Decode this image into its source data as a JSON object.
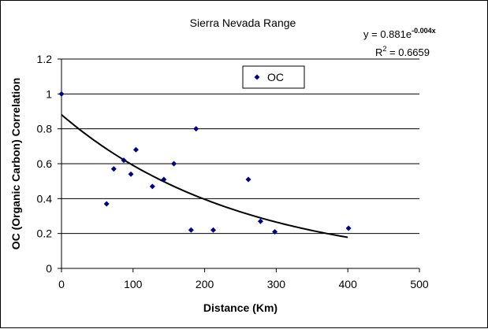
{
  "chart_data": {
    "type": "scatter",
    "title": "Sierra Nevada Range",
    "xlabel": "Distance (Km)",
    "ylabel": "OC (Organic Carbon) Correlation",
    "xlim": [
      0,
      500
    ],
    "ylim": [
      0,
      1.2
    ],
    "x_ticks": [
      0,
      100,
      200,
      300,
      400,
      500
    ],
    "y_ticks": [
      0,
      0.2,
      0.4,
      0.6,
      0.8,
      1,
      1.2
    ],
    "x_tick_labels": [
      "0",
      "100",
      "200",
      "300",
      "400",
      "500"
    ],
    "y_tick_labels": [
      "0",
      "0.2",
      "0.4",
      "0.6",
      "0.8",
      "1",
      "1.2"
    ],
    "grid": "horizontal",
    "legend_position": "top-center",
    "series": [
      {
        "name": "OC",
        "color": "#00008B",
        "marker": "diamond",
        "points": [
          {
            "x": 0,
            "y": 1.0
          },
          {
            "x": 63,
            "y": 0.37
          },
          {
            "x": 73,
            "y": 0.57
          },
          {
            "x": 87,
            "y": 0.62
          },
          {
            "x": 97,
            "y": 0.54
          },
          {
            "x": 104,
            "y": 0.68
          },
          {
            "x": 127,
            "y": 0.47
          },
          {
            "x": 143,
            "y": 0.51
          },
          {
            "x": 157,
            "y": 0.6
          },
          {
            "x": 181,
            "y": 0.22
          },
          {
            "x": 188,
            "y": 0.8
          },
          {
            "x": 212,
            "y": 0.22
          },
          {
            "x": 261,
            "y": 0.51
          },
          {
            "x": 278,
            "y": 0.27
          },
          {
            "x": 298,
            "y": 0.21
          },
          {
            "x": 401,
            "y": 0.23
          }
        ]
      }
    ],
    "trendline": {
      "type": "exponential",
      "a": 0.881,
      "b": -0.004,
      "x_range": [
        0,
        400
      ],
      "color": "#000000",
      "equation_text": "y = 0.881e",
      "equation_exponent": "-0.004x",
      "r2_prefix": "R",
      "r2_superscript": "2",
      "r2_value_text": " = 0.6659"
    }
  }
}
